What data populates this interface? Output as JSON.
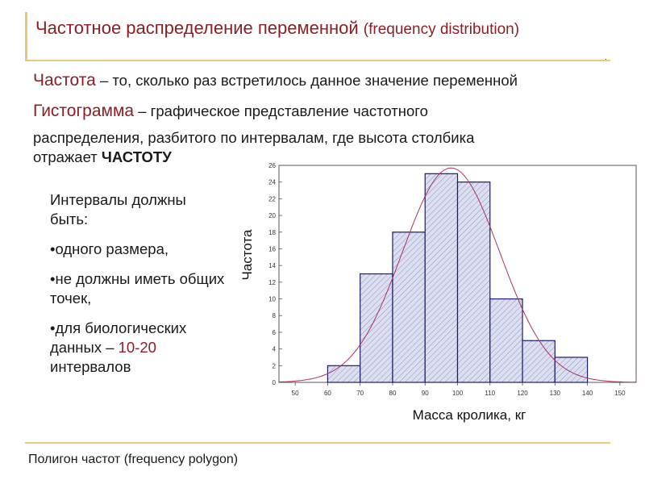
{
  "header": {
    "title_ru": "Частотное распределение переменной",
    "title_en": "(frequency distribution)"
  },
  "definitions": {
    "frequency_term": "Частота",
    "frequency_text": " – то, сколько раз встретилось данное значение переменной",
    "histogram_term": "Гистограмма",
    "histogram_text": " – графическое представление частотного",
    "histogram_line2": "распределения, разбитого по интервалам, где высота столбика",
    "histogram_line3": "отражает ",
    "histogram_bold": "ЧАСТОТУ"
  },
  "intervals": {
    "intro": "Интервалы должны быть:",
    "bullet1": "•одного размера,",
    "bullet2": "•не должны иметь общих точек,",
    "bullet3_a": "•для биологических данных – ",
    "bullet3_accent": "10-20",
    "bullet3_b": " интервалов"
  },
  "footer": {
    "polygon": "Полигон частот (frequency polygon)"
  },
  "colors": {
    "accent": "#8b1f24",
    "rule": "#e8c97a",
    "bar_fill": "#d9dced",
    "bar_stroke": "#1a1a6e",
    "curve": "#b03060"
  },
  "chart_data": {
    "type": "bar",
    "xlabel": "Масса кролика, кг",
    "ylabel": "Частота",
    "x_ticks": [
      "50",
      "60",
      "70",
      "80",
      "90",
      "100",
      "110",
      "120",
      "130",
      "140",
      "150"
    ],
    "y_ticks": [
      "0",
      "2",
      "4",
      "6",
      "8",
      "10",
      "12",
      "14",
      "16",
      "18",
      "20",
      "22",
      "24",
      "26"
    ],
    "ylim": [
      0,
      26
    ],
    "xlim": [
      45,
      155
    ],
    "bins": [
      {
        "from": 60,
        "to": 70,
        "value": 2
      },
      {
        "from": 70,
        "to": 80,
        "value": 13
      },
      {
        "from": 80,
        "to": 90,
        "value": 18
      },
      {
        "from": 90,
        "to": 100,
        "value": 25
      },
      {
        "from": 100,
        "to": 110,
        "value": 24
      },
      {
        "from": 110,
        "to": 120,
        "value": 10
      },
      {
        "from": 120,
        "to": 130,
        "value": 5
      },
      {
        "from": 130,
        "to": 140,
        "value": 3
      }
    ],
    "fit_curve": {
      "type": "normal",
      "mean": 98,
      "sd": 15,
      "peak": 25.7
    },
    "grid": false
  }
}
